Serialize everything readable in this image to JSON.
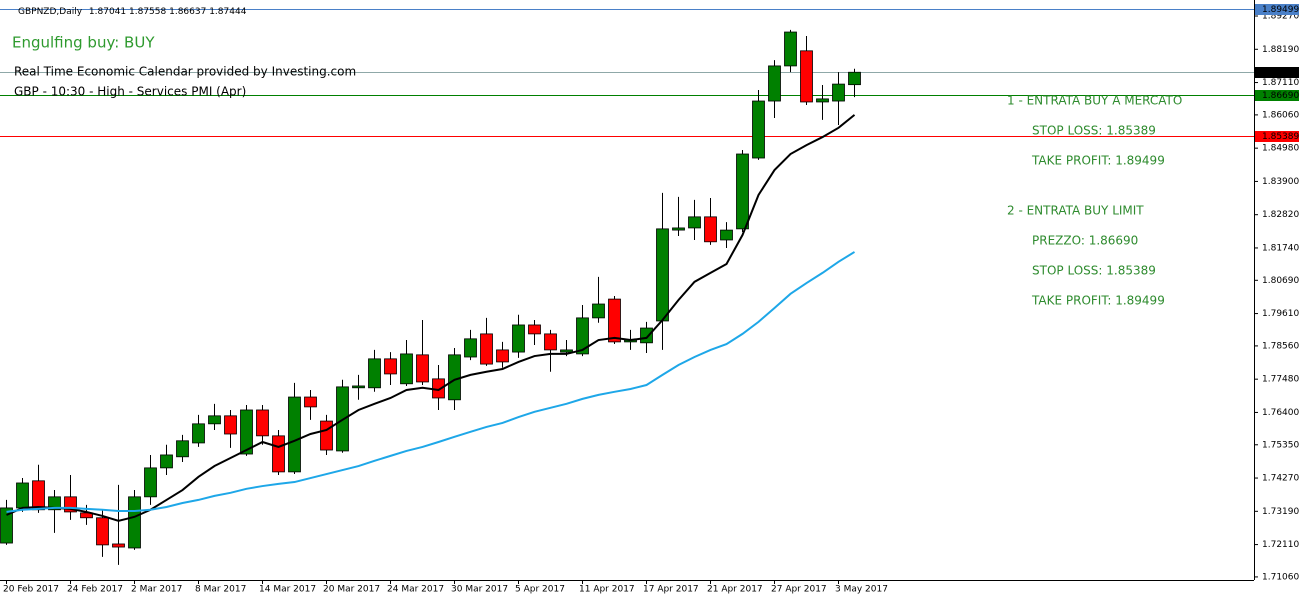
{
  "chart_data": {
    "type": "candlestick",
    "symbol": "GBPNZD,Daily",
    "categories": [
      "20 Feb 2017",
      null,
      null,
      null,
      "24 Feb 2017",
      null,
      null,
      null,
      "2 Mar 2017",
      null,
      null,
      null,
      "8 Mar 2017",
      null,
      null,
      null,
      "14 Mar 2017",
      null,
      null,
      null,
      "20 Mar 2017",
      null,
      null,
      null,
      "24 Mar 2017",
      null,
      null,
      null,
      "30 Mar 2017",
      null,
      null,
      null,
      "5 Apr 2017",
      null,
      null,
      null,
      "11 Apr 2017",
      null,
      null,
      null,
      "17 Apr 2017",
      null,
      null,
      null,
      "21 Apr 2017",
      null,
      null,
      null,
      "27 Apr 2017",
      null,
      null,
      null,
      "3 May 2017",
      null
    ],
    "candles": {
      "up_color": "#008000",
      "down_color": "#ff0000",
      "open": [
        1.7216,
        1.733,
        1.7418,
        1.7324,
        1.7366,
        1.7314,
        1.7298,
        1.7213,
        1.72,
        1.7366,
        1.746,
        1.7496,
        1.7541,
        1.7603,
        1.7629,
        1.7505,
        1.7648,
        1.7564,
        1.7447,
        1.769,
        1.7612,
        1.7515,
        1.772,
        1.772,
        1.7814,
        1.7733,
        1.7827,
        1.7749,
        1.7681,
        1.782,
        1.7895,
        1.7843,
        1.7836,
        1.7924,
        1.7895,
        1.7836,
        1.783,
        1.7947,
        1.8008,
        1.7869,
        1.7866,
        1.7937,
        1.8232,
        1.8239,
        1.8275,
        1.82,
        1.8236,
        1.8466,
        1.8651,
        1.8765,
        1.8814,
        1.8648,
        1.8651,
        1.87041
      ],
      "high": [
        1.7356,
        1.7427,
        1.747,
        1.7388,
        1.7437,
        1.734,
        1.7324,
        1.7405,
        1.7388,
        1.7502,
        1.7535,
        1.7567,
        1.7632,
        1.7668,
        1.7648,
        1.7664,
        1.7664,
        1.7583,
        1.7736,
        1.7713,
        1.7632,
        1.7746,
        1.7762,
        1.7843,
        1.7836,
        1.7875,
        1.794,
        1.7794,
        1.7849,
        1.7908,
        1.7947,
        1.7869,
        1.7957,
        1.794,
        1.7908,
        1.7875,
        1.7989,
        1.808,
        1.8018,
        1.7908,
        1.7934,
        1.8353,
        1.834,
        1.833,
        1.8336,
        1.8258,
        1.8492,
        1.8687,
        1.8784,
        1.8882,
        1.8862,
        1.8703,
        1.8745,
        1.87558
      ],
      "low": [
        1.721,
        1.7317,
        1.7314,
        1.7249,
        1.7291,
        1.7275,
        1.7171,
        1.7145,
        1.7194,
        1.734,
        1.7437,
        1.7479,
        1.7528,
        1.7583,
        1.7525,
        1.7499,
        1.7535,
        1.7437,
        1.744,
        1.7616,
        1.7502,
        1.7509,
        1.7681,
        1.7707,
        1.7729,
        1.7726,
        1.7729,
        1.7648,
        1.7648,
        1.781,
        1.7791,
        1.7785,
        1.7817,
        1.7859,
        1.7772,
        1.7823,
        1.7823,
        1.7931,
        1.7862,
        1.7843,
        1.7833,
        1.7843,
        1.8213,
        1.82,
        1.8184,
        1.8174,
        1.8226,
        1.846,
        1.8596,
        1.8745,
        1.8638,
        1.859,
        1.8573,
        1.86637
      ],
      "close": [
        1.733,
        1.7411,
        1.7324,
        1.7366,
        1.7317,
        1.7298,
        1.721,
        1.7203,
        1.7366,
        1.746,
        1.7502,
        1.7548,
        1.7603,
        1.7629,
        1.757,
        1.7648,
        1.7564,
        1.7447,
        1.769,
        1.7658,
        1.7518,
        1.7723,
        1.7726,
        1.7814,
        1.7765,
        1.783,
        1.7739,
        1.7687,
        1.7827,
        1.7879,
        1.7797,
        1.7804,
        1.7924,
        1.7895,
        1.7843,
        1.7843,
        1.7947,
        1.7992,
        1.7869,
        1.7875,
        1.7914,
        1.8236,
        1.8239,
        1.8275,
        1.8194,
        1.8232,
        1.8479,
        1.8651,
        1.8765,
        1.8875,
        1.8648,
        1.8658,
        1.8706,
        1.87444
      ]
    },
    "series": [
      {
        "color": "#000000",
        "values": [
          1.7307,
          1.733,
          1.7333,
          1.733,
          1.7327,
          1.7317,
          1.7304,
          1.7288,
          1.7301,
          1.7324,
          1.7356,
          1.7388,
          1.7431,
          1.7466,
          1.7492,
          1.7518,
          1.7544,
          1.7528,
          1.7548,
          1.757,
          1.7583,
          1.7616,
          1.7648,
          1.7668,
          1.7687,
          1.7713,
          1.772,
          1.7713,
          1.7746,
          1.7762,
          1.7772,
          1.7781,
          1.7804,
          1.7823,
          1.783,
          1.783,
          1.7843,
          1.7875,
          1.7882,
          1.7875,
          1.7882,
          1.794,
          1.8005,
          1.8064,
          1.8093,
          1.8122,
          1.8216,
          1.8346,
          1.8427,
          1.8479,
          1.8508,
          1.8534,
          1.8564,
          1.8606
        ]
      },
      {
        "color": "#1ea7e8",
        "values": [
          1.7317,
          1.7324,
          1.7327,
          1.733,
          1.733,
          1.7327,
          1.7324,
          1.732,
          1.732,
          1.7324,
          1.7333,
          1.7346,
          1.7356,
          1.7369,
          1.7379,
          1.7392,
          1.7401,
          1.7408,
          1.7414,
          1.7427,
          1.744,
          1.7453,
          1.7466,
          1.7483,
          1.7499,
          1.7515,
          1.7528,
          1.7544,
          1.7561,
          1.7577,
          1.7593,
          1.7606,
          1.7625,
          1.7642,
          1.7655,
          1.7668,
          1.7684,
          1.7697,
          1.7707,
          1.7716,
          1.7729,
          1.7762,
          1.7794,
          1.782,
          1.7843,
          1.7862,
          1.7895,
          1.7934,
          1.7979,
          1.8025,
          1.806,
          1.8093,
          1.8129,
          1.8161
        ]
      }
    ],
    "levels": [
      {
        "value": 1.89499,
        "color": "#4a80c8"
      },
      {
        "value": 1.87444,
        "color": "#8fa8a8",
        "label_color": "#000000"
      },
      {
        "value": 1.8669,
        "label": "1.86690",
        "color": "#008000"
      },
      {
        "value": 1.85389,
        "color": "#ff0000"
      }
    ],
    "ylim": [
      1.7096,
      1.8979
    ],
    "yticks": [
      {
        "value": 1.8927,
        "label": "1.89270"
      },
      {
        "value": 1.8819,
        "label": "1.88190"
      },
      {
        "value": 1.8711,
        "label": "1.87110"
      },
      {
        "value": 1.8606,
        "label": "1.86060"
      },
      {
        "value": 1.8498,
        "label": "1.84980"
      },
      {
        "value": 1.839,
        "label": "1.83900"
      },
      {
        "value": 1.8282,
        "label": "1.82820"
      },
      {
        "value": 1.8174,
        "label": "1.81740"
      },
      {
        "value": 1.8069,
        "label": "1.80690"
      },
      {
        "value": 1.7961,
        "label": "1.79610"
      },
      {
        "value": 1.7856,
        "label": "1.78560"
      },
      {
        "value": 1.7748,
        "label": "1.77480"
      },
      {
        "value": 1.764,
        "label": "1.76400"
      },
      {
        "value": 1.7535,
        "label": "1.75350"
      },
      {
        "value": 1.7427,
        "label": "1.74270"
      },
      {
        "value": 1.7319,
        "label": "1.73190"
      },
      {
        "value": 1.7211,
        "label": "1.72110"
      },
      {
        "value": 1.7106,
        "label": "1.71060"
      }
    ],
    "annotations": [
      "Engulfing buy: BUY",
      "Real Time Economic Calendar provided by Investing.com",
      "GBP - 10:30 - High - Services PMI (Apr)"
    ],
    "plan": [
      "1 - ENTRATA BUY A MERCATO",
      "STOP LOSS: 1.85389",
      "TAKE PROFIT: 1.89499",
      "2 - ENTRATA BUY LIMIT",
      "PREZZO: 1.86690",
      "STOP LOSS: 1.85389",
      "TAKE PROFIT: 1.89499"
    ]
  }
}
